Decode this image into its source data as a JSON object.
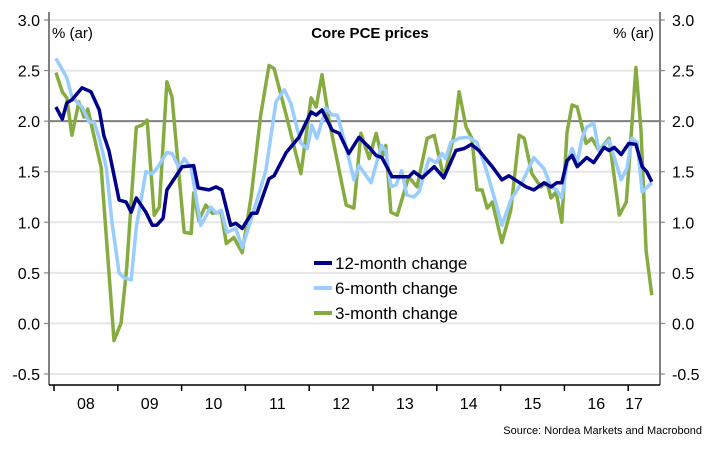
{
  "chart_data": {
    "type": "line",
    "title": "Core PCE prices",
    "ylabel_left": "% (ar)",
    "ylabel_right": "% (ar)",
    "ylim": [
      -0.5,
      3.0
    ],
    "yticks": [
      -0.5,
      0.0,
      0.5,
      1.0,
      1.5,
      2.0,
      2.5,
      3.0
    ],
    "ytick_labels": [
      "-0.5",
      "0.0",
      "0.5",
      "1.0",
      "1.5",
      "2.0",
      "2.5",
      "3.0"
    ],
    "xlim": [
      2008.0,
      2017.5
    ],
    "xtick_labels": [
      "08",
      "09",
      "10",
      "11",
      "12",
      "13",
      "14",
      "15",
      "16",
      "17"
    ],
    "reference_line": 2.0,
    "grid": true,
    "legend_position": "bottom-center",
    "source": "Source: Nordea Markets and Macrobond",
    "colors": {
      "12m": "#00008b",
      "6m": "#99ccff",
      "3m": "#86ac41",
      "ref": "#808080"
    },
    "series": [
      {
        "name": "12-month change",
        "key": "12m",
        "points": [
          [
            2008.03,
            2.14
          ],
          [
            2008.13,
            2.02
          ],
          [
            2008.2,
            2.18
          ],
          [
            2008.28,
            2.21
          ],
          [
            2008.44,
            2.33
          ],
          [
            2008.58,
            2.29
          ],
          [
            2008.71,
            2.11
          ],
          [
            2008.78,
            1.86
          ],
          [
            2008.86,
            1.71
          ],
          [
            2009.02,
            1.22
          ],
          [
            2009.13,
            1.2
          ],
          [
            2009.21,
            1.1
          ],
          [
            2009.29,
            1.24
          ],
          [
            2009.44,
            1.1
          ],
          [
            2009.54,
            0.97
          ],
          [
            2009.61,
            0.97
          ],
          [
            2009.71,
            1.04
          ],
          [
            2009.77,
            1.32
          ],
          [
            2010.01,
            1.55
          ],
          [
            2010.19,
            1.56
          ],
          [
            2010.26,
            1.34
          ],
          [
            2010.43,
            1.32
          ],
          [
            2010.54,
            1.35
          ],
          [
            2010.63,
            1.32
          ],
          [
            2010.77,
            0.97
          ],
          [
            2010.85,
            0.99
          ],
          [
            2010.95,
            0.94
          ],
          [
            2011.1,
            1.09
          ],
          [
            2011.18,
            1.09
          ],
          [
            2011.37,
            1.43
          ],
          [
            2011.45,
            1.46
          ],
          [
            2011.64,
            1.69
          ],
          [
            2011.84,
            1.84
          ],
          [
            2012.03,
            2.09
          ],
          [
            2012.11,
            2.06
          ],
          [
            2012.2,
            2.11
          ],
          [
            2012.36,
            1.91
          ],
          [
            2012.47,
            1.88
          ],
          [
            2012.62,
            1.68
          ],
          [
            2012.78,
            1.84
          ],
          [
            2012.94,
            1.74
          ],
          [
            2013.05,
            1.66
          ],
          [
            2013.14,
            1.64
          ],
          [
            2013.3,
            1.45
          ],
          [
            2013.56,
            1.45
          ],
          [
            2013.64,
            1.5
          ],
          [
            2013.77,
            1.44
          ],
          [
            2013.96,
            1.55
          ],
          [
            2014.11,
            1.44
          ],
          [
            2014.3,
            1.71
          ],
          [
            2014.43,
            1.73
          ],
          [
            2014.54,
            1.77
          ],
          [
            2014.66,
            1.71
          ],
          [
            2014.87,
            1.55
          ],
          [
            2015.02,
            1.42
          ],
          [
            2015.13,
            1.46
          ],
          [
            2015.4,
            1.35
          ],
          [
            2015.52,
            1.32
          ],
          [
            2015.68,
            1.39
          ],
          [
            2015.79,
            1.35
          ],
          [
            2015.88,
            1.39
          ],
          [
            2015.96,
            1.39
          ],
          [
            2016.04,
            1.61
          ],
          [
            2016.12,
            1.66
          ],
          [
            2016.2,
            1.55
          ],
          [
            2016.35,
            1.64
          ],
          [
            2016.46,
            1.59
          ],
          [
            2016.62,
            1.74
          ],
          [
            2016.7,
            1.71
          ],
          [
            2016.78,
            1.74
          ],
          [
            2016.89,
            1.67
          ],
          [
            2017.01,
            1.78
          ],
          [
            2017.12,
            1.77
          ],
          [
            2017.22,
            1.55
          ],
          [
            2017.29,
            1.5
          ],
          [
            2017.37,
            1.4
          ]
        ]
      },
      {
        "name": "6-month change",
        "key": "6m",
        "points": [
          [
            2008.03,
            2.62
          ],
          [
            2008.2,
            2.43
          ],
          [
            2008.28,
            2.24
          ],
          [
            2008.44,
            2.14
          ],
          [
            2008.55,
            1.99
          ],
          [
            2008.63,
            1.99
          ],
          [
            2008.71,
            1.83
          ],
          [
            2008.82,
            1.54
          ],
          [
            2008.91,
            0.99
          ],
          [
            2009.02,
            0.5
          ],
          [
            2009.1,
            0.45
          ],
          [
            2009.21,
            0.43
          ],
          [
            2009.29,
            0.95
          ],
          [
            2009.44,
            1.5
          ],
          [
            2009.54,
            1.48
          ],
          [
            2009.61,
            1.53
          ],
          [
            2009.77,
            1.69
          ],
          [
            2009.85,
            1.68
          ],
          [
            2009.96,
            1.54
          ],
          [
            2010.04,
            1.63
          ],
          [
            2010.15,
            1.54
          ],
          [
            2010.3,
            0.97
          ],
          [
            2010.46,
            1.15
          ],
          [
            2010.54,
            1.09
          ],
          [
            2010.62,
            1.12
          ],
          [
            2010.71,
            0.9
          ],
          [
            2010.85,
            0.94
          ],
          [
            2010.95,
            0.75
          ],
          [
            2011.1,
            1.05
          ],
          [
            2011.32,
            1.51
          ],
          [
            2011.48,
            2.19
          ],
          [
            2011.61,
            2.31
          ],
          [
            2011.71,
            2.18
          ],
          [
            2011.87,
            1.78
          ],
          [
            2011.97,
            1.73
          ],
          [
            2012.04,
            1.96
          ],
          [
            2012.12,
            1.83
          ],
          [
            2012.26,
            2.13
          ],
          [
            2012.36,
            2.06
          ],
          [
            2012.44,
            2.06
          ],
          [
            2012.58,
            1.74
          ],
          [
            2012.7,
            1.42
          ],
          [
            2012.78,
            1.56
          ],
          [
            2012.97,
            1.39
          ],
          [
            2013.13,
            1.76
          ],
          [
            2013.2,
            1.71
          ],
          [
            2013.28,
            1.35
          ],
          [
            2013.36,
            1.37
          ],
          [
            2013.45,
            1.51
          ],
          [
            2013.53,
            1.27
          ],
          [
            2013.64,
            1.25
          ],
          [
            2013.72,
            1.3
          ],
          [
            2013.88,
            1.63
          ],
          [
            2013.99,
            1.59
          ],
          [
            2014.08,
            1.68
          ],
          [
            2014.14,
            1.63
          ],
          [
            2014.22,
            1.79
          ],
          [
            2014.35,
            1.83
          ],
          [
            2014.5,
            1.84
          ],
          [
            2014.63,
            1.79
          ],
          [
            2014.77,
            1.53
          ],
          [
            2014.9,
            1.25
          ],
          [
            2015.02,
            0.97
          ],
          [
            2015.16,
            1.22
          ],
          [
            2015.34,
            1.4
          ],
          [
            2015.52,
            1.64
          ],
          [
            2015.68,
            1.53
          ],
          [
            2015.79,
            1.35
          ],
          [
            2015.88,
            1.32
          ],
          [
            2015.96,
            1.24
          ],
          [
            2016.04,
            1.58
          ],
          [
            2016.12,
            1.73
          ],
          [
            2016.2,
            1.59
          ],
          [
            2016.28,
            1.84
          ],
          [
            2016.35,
            1.94
          ],
          [
            2016.46,
            1.98
          ],
          [
            2016.54,
            1.71
          ],
          [
            2016.7,
            1.81
          ],
          [
            2016.89,
            1.42
          ],
          [
            2016.98,
            1.53
          ],
          [
            2017.06,
            1.83
          ],
          [
            2017.14,
            1.79
          ],
          [
            2017.22,
            1.3
          ],
          [
            2017.37,
            1.39
          ]
        ]
      },
      {
        "name": "3-month change",
        "key": "3m",
        "points": [
          [
            2008.03,
            2.48
          ],
          [
            2008.13,
            2.29
          ],
          [
            2008.2,
            2.23
          ],
          [
            2008.28,
            1.86
          ],
          [
            2008.39,
            2.19
          ],
          [
            2008.47,
            2.04
          ],
          [
            2008.53,
            2.12
          ],
          [
            2008.74,
            1.54
          ],
          [
            2008.94,
            -0.17
          ],
          [
            2009.05,
            0.0
          ],
          [
            2009.14,
            0.55
          ],
          [
            2009.29,
            1.94
          ],
          [
            2009.38,
            1.96
          ],
          [
            2009.46,
            2.01
          ],
          [
            2009.57,
            1.07
          ],
          [
            2009.65,
            1.15
          ],
          [
            2009.77,
            2.39
          ],
          [
            2009.85,
            2.24
          ],
          [
            2010.04,
            0.9
          ],
          [
            2010.15,
            0.89
          ],
          [
            2010.19,
            1.29
          ],
          [
            2010.27,
            1.02
          ],
          [
            2010.38,
            1.17
          ],
          [
            2010.48,
            1.09
          ],
          [
            2010.62,
            1.1
          ],
          [
            2010.7,
            0.79
          ],
          [
            2010.82,
            0.85
          ],
          [
            2010.95,
            0.7
          ],
          [
            2011.09,
            1.25
          ],
          [
            2011.24,
            2.06
          ],
          [
            2011.37,
            2.55
          ],
          [
            2011.45,
            2.52
          ],
          [
            2011.64,
            2.06
          ],
          [
            2011.87,
            1.48
          ],
          [
            2012.03,
            2.23
          ],
          [
            2012.11,
            2.14
          ],
          [
            2012.2,
            2.46
          ],
          [
            2012.31,
            2.01
          ],
          [
            2012.58,
            1.17
          ],
          [
            2012.7,
            1.14
          ],
          [
            2012.81,
            1.88
          ],
          [
            2012.94,
            1.63
          ],
          [
            2013.05,
            1.88
          ],
          [
            2013.14,
            1.64
          ],
          [
            2013.2,
            1.76
          ],
          [
            2013.28,
            1.1
          ],
          [
            2013.38,
            1.07
          ],
          [
            2013.56,
            1.45
          ],
          [
            2013.69,
            1.35
          ],
          [
            2013.85,
            1.83
          ],
          [
            2013.96,
            1.86
          ],
          [
            2014.11,
            1.44
          ],
          [
            2014.27,
            1.86
          ],
          [
            2014.35,
            2.29
          ],
          [
            2014.46,
            1.94
          ],
          [
            2014.55,
            1.83
          ],
          [
            2014.63,
            1.32
          ],
          [
            2014.71,
            1.32
          ],
          [
            2014.79,
            1.14
          ],
          [
            2014.87,
            1.2
          ],
          [
            2015.02,
            0.8
          ],
          [
            2015.16,
            1.12
          ],
          [
            2015.29,
            1.86
          ],
          [
            2015.37,
            1.83
          ],
          [
            2015.49,
            1.48
          ],
          [
            2015.63,
            1.35
          ],
          [
            2015.73,
            1.39
          ],
          [
            2015.79,
            1.24
          ],
          [
            2015.87,
            1.3
          ],
          [
            2015.96,
            1.0
          ],
          [
            2016.04,
            1.89
          ],
          [
            2016.12,
            2.16
          ],
          [
            2016.2,
            2.14
          ],
          [
            2016.34,
            1.78
          ],
          [
            2016.43,
            1.83
          ],
          [
            2016.54,
            1.71
          ],
          [
            2016.7,
            1.83
          ],
          [
            2016.86,
            1.07
          ],
          [
            2016.97,
            1.2
          ],
          [
            2017.04,
            1.81
          ],
          [
            2017.12,
            2.53
          ],
          [
            2017.2,
            1.91
          ],
          [
            2017.28,
            0.72
          ],
          [
            2017.37,
            0.28
          ]
        ]
      }
    ]
  }
}
